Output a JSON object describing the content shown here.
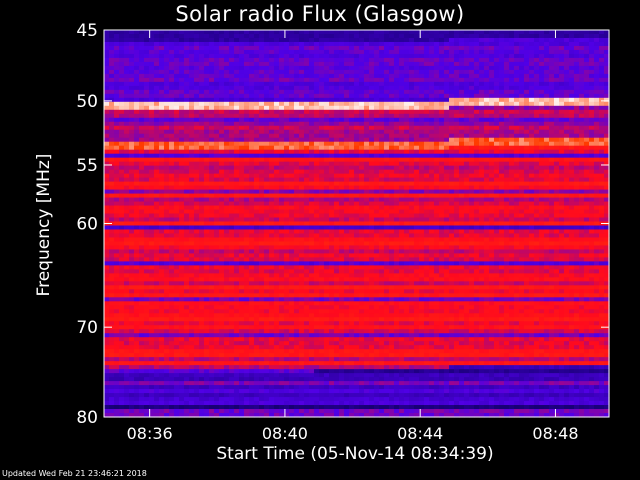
{
  "chart_data": {
    "type": "heatmap",
    "title": "Solar radio Flux (Glasgow)",
    "ylabel": "Frequency [MHz]",
    "xlabel": "Start Time (05-Nov-14 08:34:39)",
    "ylim": [
      45,
      80
    ],
    "y_ticks": [
      {
        "value": 45,
        "label": "45"
      },
      {
        "value": 50,
        "label": "50"
      },
      {
        "value": 55,
        "label": "55"
      },
      {
        "value": 60,
        "label": "60"
      },
      {
        "value": 70,
        "label": "70"
      },
      {
        "value": 80,
        "label": "80"
      }
    ],
    "x_range": [
      "08:34:39",
      "08:49:35"
    ],
    "x_ticks": [
      {
        "time": "08:36",
        "label": "08:36"
      },
      {
        "time": "08:40",
        "label": "08:40"
      },
      {
        "time": "08:44",
        "label": "08:44"
      },
      {
        "time": "08:48",
        "label": "08:48"
      }
    ],
    "colors": {
      "background": "#000000",
      "low": "#0000c8",
      "mid": "#ff2000",
      "high": "#ffffff"
    }
  },
  "footer": {
    "updated": "Updated Wed Feb 21 23:46:21 2018"
  }
}
